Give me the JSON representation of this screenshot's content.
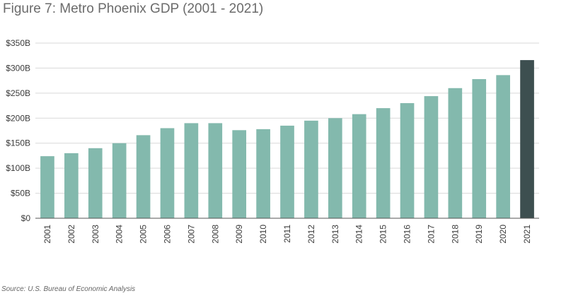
{
  "title": "Figure 7: Metro Phoenix GDP (2001 - 2021)",
  "source": "Source: U.S. Bureau of Economic Analysis",
  "colors": {
    "bar": "#83b9ad",
    "highlight": "#3d4f50",
    "grid": "#d9d9d9",
    "axis": "#555555"
  },
  "chart_data": {
    "type": "bar",
    "title": "Figure 7: Metro Phoenix GDP (2001 - 2021)",
    "xlabel": "",
    "ylabel": "",
    "categories": [
      "2001",
      "2002",
      "2003",
      "2004",
      "2005",
      "2006",
      "2007",
      "2008",
      "2009",
      "2010",
      "2011",
      "2012",
      "2013",
      "2014",
      "2015",
      "2016",
      "2017",
      "2018",
      "2019",
      "2020",
      "2021"
    ],
    "values": [
      124,
      130,
      140,
      150,
      166,
      180,
      190,
      190,
      176,
      178,
      185,
      195,
      200,
      208,
      220,
      230,
      244,
      260,
      278,
      286,
      316
    ],
    "highlight_category": "2021",
    "ylim": [
      0,
      350
    ],
    "yticks": [
      0,
      50,
      100,
      150,
      200,
      250,
      300,
      350
    ],
    "ytick_labels": [
      "$0",
      "$50B",
      "$100B",
      "$150B",
      "$200B",
      "$250B",
      "$300B",
      "$350B"
    ],
    "grid": true,
    "legend": "none"
  }
}
